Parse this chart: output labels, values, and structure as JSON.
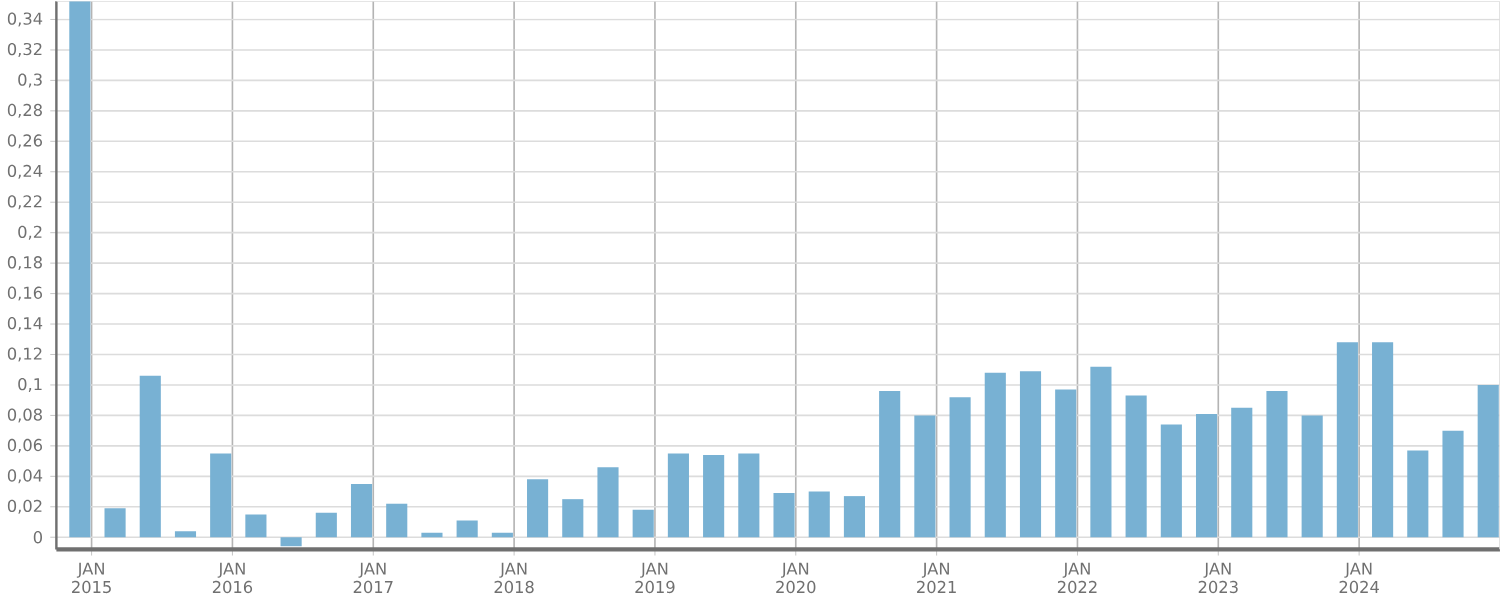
{
  "chart_data": {
    "type": "bar",
    "color": "#78b1d3",
    "x": [
      "2014-12",
      "2015-03",
      "2015-06",
      "2015-09",
      "2015-12",
      "2016-03",
      "2016-06",
      "2016-09",
      "2016-12",
      "2017-03",
      "2017-06",
      "2017-09",
      "2017-12",
      "2018-03",
      "2018-06",
      "2018-09",
      "2018-12",
      "2019-03",
      "2019-06",
      "2019-09",
      "2019-12",
      "2020-03",
      "2020-06",
      "2020-09",
      "2020-12",
      "2021-03",
      "2021-06",
      "2021-09",
      "2021-12",
      "2022-03",
      "2022-06",
      "2022-09",
      "2022-12",
      "2023-03",
      "2023-06",
      "2023-09",
      "2023-12",
      "2024-03",
      "2024-06",
      "2024-09",
      "2024-12"
    ],
    "values": [
      0.352,
      0.019,
      0.106,
      0.004,
      0.055,
      0.015,
      -0.006,
      0.016,
      0.035,
      0.022,
      0.003,
      0.011,
      0.003,
      0.038,
      0.025,
      0.046,
      0.018,
      0.055,
      0.054,
      0.055,
      0.029,
      0.03,
      0.027,
      0.096,
      0.08,
      0.092,
      0.108,
      0.109,
      0.097,
      0.112,
      0.093,
      0.074,
      0.081,
      0.085,
      0.096,
      0.08,
      0.128,
      0.128,
      0.057,
      0.07,
      0.1
    ],
    "xlim": [
      "2014-10",
      "2025-01"
    ],
    "xticks": [
      {
        "value": "2015-01",
        "label": "JAN 2015"
      },
      {
        "value": "2016-01",
        "label": "JAN 2016"
      },
      {
        "value": "2017-01",
        "label": "JAN 2017"
      },
      {
        "value": "2018-01",
        "label": "JAN 2018"
      },
      {
        "value": "2019-01",
        "label": "JAN 2019"
      },
      {
        "value": "2020-01",
        "label": "JAN 2020"
      },
      {
        "value": "2021-01",
        "label": "JAN 2021"
      },
      {
        "value": "2022-01",
        "label": "JAN 2022"
      },
      {
        "value": "2023-01",
        "label": "JAN 2023"
      },
      {
        "value": "2024-01",
        "label": "JAN 2024"
      }
    ],
    "ylim": [
      -0.008,
      0.352
    ],
    "yticks": [
      0,
      {
        "value": 0.02,
        "label": "0,02"
      },
      {
        "value": 0.04,
        "label": "0,04"
      },
      {
        "value": 0.06,
        "label": "0,06"
      },
      {
        "value": 0.08,
        "label": "0,08"
      },
      {
        "value": 0.1,
        "label": "0,1"
      },
      {
        "value": 0.12,
        "label": "0,12"
      },
      {
        "value": 0.14,
        "label": "0,14"
      },
      {
        "value": 0.16,
        "label": "0,16"
      },
      {
        "value": 0.18,
        "label": "0,18"
      },
      {
        "value": 0.2,
        "label": "0,2"
      },
      {
        "value": 0.22,
        "label": "0,22"
      },
      {
        "value": 0.24,
        "label": "0,24"
      },
      {
        "value": 0.26,
        "label": "0,26"
      },
      {
        "value": 0.28,
        "label": "0,28"
      },
      {
        "value": 0.3,
        "label": "0,3"
      },
      {
        "value": 0.32,
        "label": "0,32"
      },
      {
        "value": 0.34,
        "label": "0,34"
      }
    ],
    "grid": true
  }
}
